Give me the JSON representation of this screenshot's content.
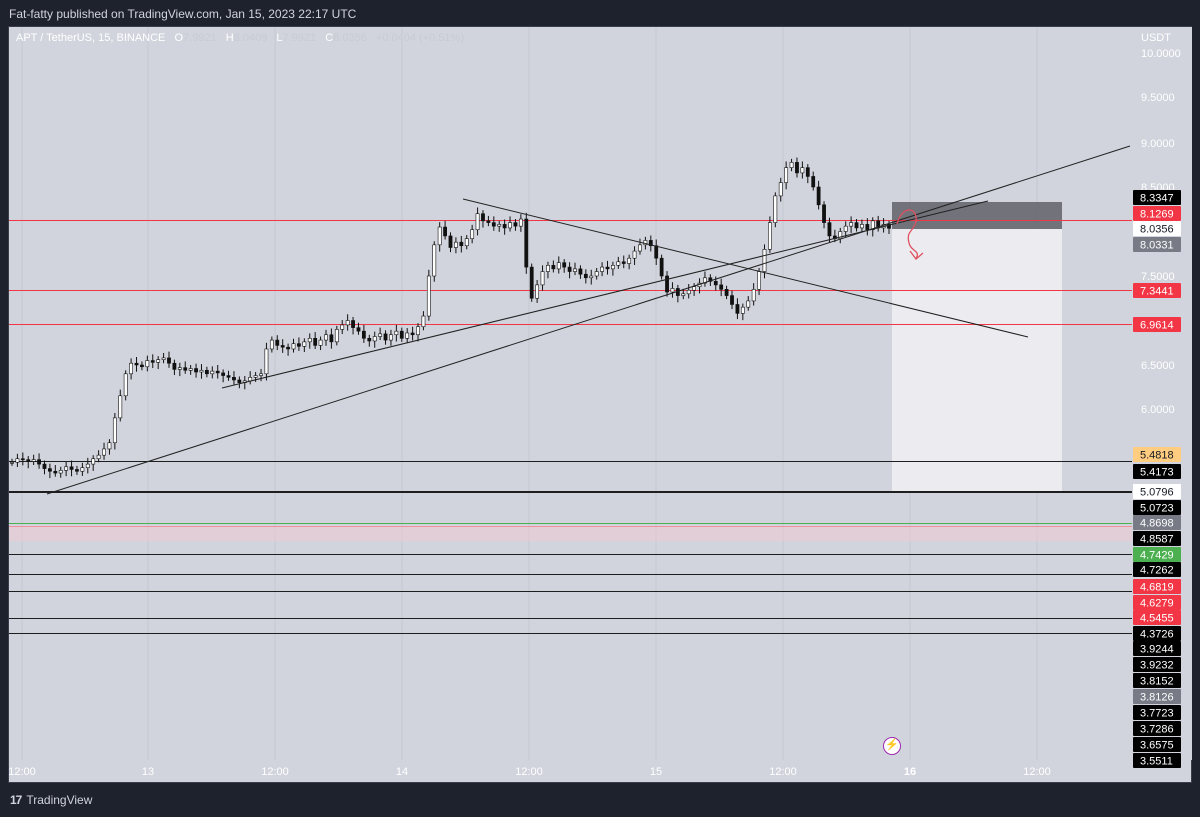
{
  "header": {
    "published": "Fat-fatty published on TradingView.com, Jan 15, 2023 22:17 UTC"
  },
  "legend": {
    "symbol": "APT / TetherUS, 15, BINANCE",
    "o_label": "O",
    "open": "7.9921",
    "h_label": "H",
    "high": "8.0409",
    "l_label": "L",
    "low": "7.9921",
    "c_label": "C",
    "close": "8.0356",
    "change": "+0.0404 (+0.51%)"
  },
  "currency": "USDT",
  "footer": {
    "brand": "TradingView",
    "brand_mark": "17"
  },
  "lightning_icon": "lightning-icon",
  "colors": {
    "red_level": "#f23645",
    "green_level": "#4caf50",
    "orange_tag": "#ffcc80",
    "zone_dark": "#606068",
    "zone_light": "#ececf0"
  },
  "chart_data": {
    "type": "candlestick",
    "x_ticks": [
      "12:00",
      "13",
      "12:00",
      "14",
      "12:00",
      "15",
      "12:00",
      "16",
      "12:00"
    ],
    "y_ticks": [
      "10.0000",
      "9.5000",
      "9.0000",
      "8.5000",
      "7.5000",
      "6.5000",
      "6.0000"
    ],
    "y_range": [
      3.55,
      10.1
    ],
    "candles_close_path": [
      5.4,
      5.44,
      5.43,
      5.41,
      5.43,
      5.38,
      5.33,
      5.3,
      5.28,
      5.31,
      5.35,
      5.32,
      5.3,
      5.34,
      5.38,
      5.44,
      5.48,
      5.55,
      5.62,
      5.9,
      6.15,
      6.4,
      6.52,
      6.5,
      6.48,
      6.55,
      6.53,
      6.56,
      6.58,
      6.52,
      6.45,
      6.47,
      6.44,
      6.46,
      6.42,
      6.44,
      6.4,
      6.43,
      6.41,
      6.38,
      6.36,
      6.33,
      6.3,
      6.32,
      6.36,
      6.38,
      6.4,
      6.68,
      6.78,
      6.72,
      6.7,
      6.68,
      6.74,
      6.71,
      6.76,
      6.8,
      6.72,
      6.78,
      6.84,
      6.76,
      6.9,
      6.95,
      7.0,
      6.92,
      6.88,
      6.8,
      6.77,
      6.82,
      6.85,
      6.78,
      6.84,
      6.88,
      6.8,
      6.86,
      6.84,
      6.93,
      7.05,
      7.5,
      7.85,
      8.05,
      7.95,
      7.82,
      7.88,
      7.84,
      7.92,
      8.02,
      8.2,
      8.12,
      8.1,
      8.06,
      8.08,
      8.04,
      8.1,
      8.06,
      8.14,
      7.6,
      7.25,
      7.4,
      7.55,
      7.62,
      7.58,
      7.65,
      7.6,
      7.55,
      7.58,
      7.52,
      7.48,
      7.5,
      7.55,
      7.6,
      7.58,
      7.62,
      7.66,
      7.64,
      7.7,
      7.78,
      7.85,
      7.9,
      7.84,
      7.7,
      7.5,
      7.32,
      7.36,
      7.28,
      7.3,
      7.34,
      7.38,
      7.42,
      7.48,
      7.44,
      7.4,
      7.35,
      7.28,
      7.18,
      7.08,
      7.15,
      7.22,
      7.35,
      7.55,
      7.8,
      8.1,
      8.4,
      8.55,
      8.72,
      8.78,
      8.66,
      8.72,
      8.62,
      8.5,
      8.3,
      8.1,
      7.95,
      7.92,
      8.0,
      8.06,
      8.1,
      8.04,
      8.08,
      8.02,
      8.12,
      8.04,
      8.08,
      8.0356
    ],
    "price_levels": [
      {
        "value": "8.3347",
        "style": "dark"
      },
      {
        "value": "8.1269",
        "style": "red",
        "line": "red"
      },
      {
        "value": "8.0356",
        "style": "white"
      },
      {
        "value": "8.0331",
        "style": "gray"
      },
      {
        "value": "7.3441",
        "style": "red",
        "line": "red"
      },
      {
        "value": "6.9614",
        "style": "red",
        "line": "red"
      },
      {
        "value": "5.4818",
        "style": "orange"
      },
      {
        "value": "5.4173",
        "style": "dark",
        "line": "black"
      },
      {
        "value": "5.0796",
        "style": "white",
        "line": "black"
      },
      {
        "value": "5.0723",
        "style": "dark",
        "line": "black"
      },
      {
        "value": "4.8698",
        "style": "gray",
        "line": "green"
      },
      {
        "value": "4.8587",
        "style": "dark",
        "line": "pink"
      },
      {
        "value": "4.7429",
        "style": "green",
        "line": "black"
      },
      {
        "value": "4.7262",
        "style": "dark"
      },
      {
        "value": "4.6819",
        "style": "red",
        "line": "black"
      },
      {
        "value": "4.6279",
        "style": "red",
        "line": "black"
      },
      {
        "value": "4.5455",
        "style": "red",
        "line": "black"
      },
      {
        "value": "4.3726",
        "style": "dark",
        "line": "black"
      },
      {
        "value": "3.9244",
        "style": "dark"
      },
      {
        "value": "3.9232",
        "style": "dark"
      },
      {
        "value": "3.8152",
        "style": "dark"
      },
      {
        "value": "3.8126",
        "style": "gray"
      },
      {
        "value": "3.7723",
        "style": "dark"
      },
      {
        "value": "3.7286",
        "style": "dark"
      },
      {
        "value": "3.6575",
        "style": "dark"
      },
      {
        "value": "3.5511",
        "style": "dark"
      }
    ]
  }
}
